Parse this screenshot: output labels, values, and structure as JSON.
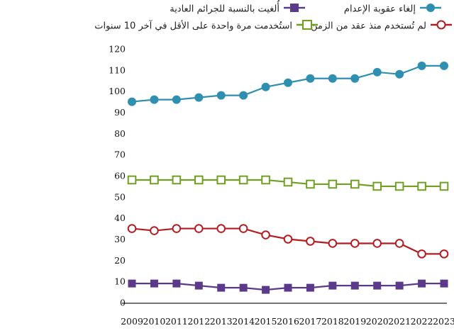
{
  "chart_data": {
    "type": "line",
    "x": [
      "2009",
      "2010",
      "2011",
      "2012",
      "2013",
      "2014",
      "2015",
      "2016",
      "2017",
      "2018",
      "2019",
      "2020",
      "2021",
      "2022",
      "2023"
    ],
    "ylim": [
      0,
      120
    ],
    "yticks": [
      0,
      10,
      20,
      30,
      40,
      50,
      60,
      70,
      80,
      90,
      100,
      110,
      120
    ],
    "grid": false,
    "legend_position": "top",
    "series": [
      {
        "name": "إلغاء عقوبة الإعدام",
        "color": "#2f8fb0",
        "marker": "filled-circle",
        "values": [
          95,
          96,
          96,
          97,
          98,
          98,
          102,
          104,
          106,
          106,
          106,
          109,
          108,
          112,
          112
        ]
      },
      {
        "name": "أُلغيت بالنسبة للجرائم العادية",
        "color": "#5b3a8c",
        "marker": "filled-square",
        "values": [
          9,
          9,
          9,
          8,
          7,
          7,
          6,
          7,
          7,
          8,
          8,
          8,
          8,
          9,
          9
        ]
      },
      {
        "name": "لم تُستخدم منذ عقد من الزمن",
        "color": "#b01e23",
        "marker": "open-circle",
        "values": [
          35,
          34,
          35,
          35,
          35,
          35,
          32,
          30,
          29,
          28,
          28,
          28,
          28,
          23,
          23
        ]
      },
      {
        "name": "استُخدمت مرة واحدة على الأقل في آخر 10 سنوات",
        "color": "#6fa022",
        "marker": "open-square",
        "values": [
          58,
          58,
          58,
          58,
          58,
          58,
          58,
          57,
          56,
          56,
          56,
          55,
          55,
          55,
          55
        ]
      }
    ]
  }
}
